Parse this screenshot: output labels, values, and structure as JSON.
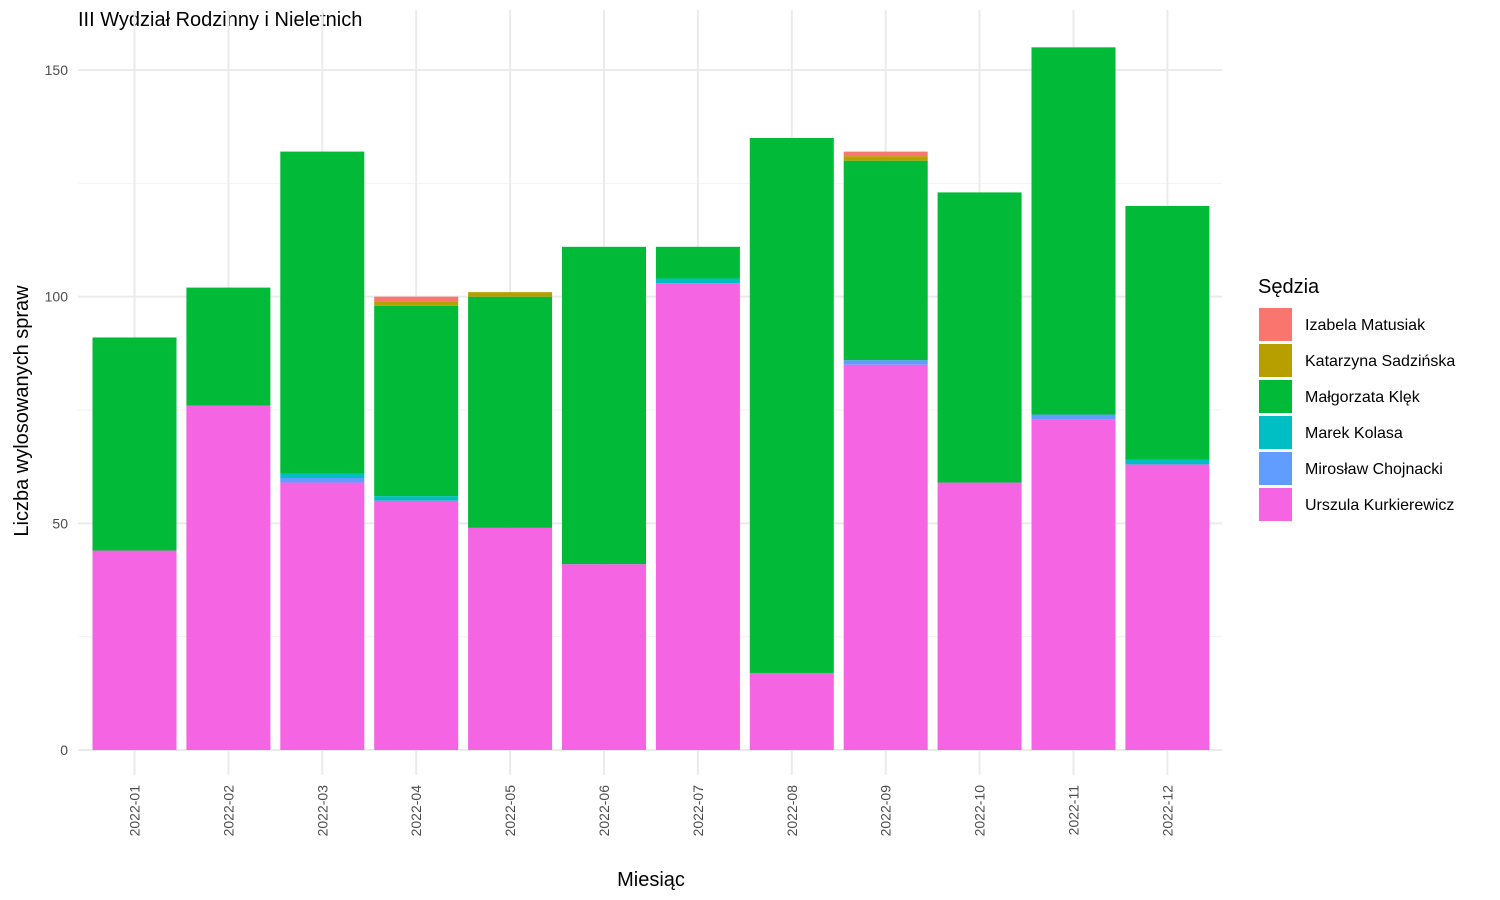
{
  "chart_data": {
    "type": "bar",
    "stacked": true,
    "title": "III Wydział Rodzinny i Nieletnich",
    "xlabel": "Miesiąc",
    "ylabel": "Liczba wylosowanych spraw",
    "ylim": [
      0,
      160
    ],
    "yticks": [
      0,
      50,
      100,
      150
    ],
    "grid": true,
    "legend_title": "Sędzia",
    "legend_position": "right",
    "categories": [
      "2022-01",
      "2022-02",
      "2022-03",
      "2022-04",
      "2022-05",
      "2022-06",
      "2022-07",
      "2022-08",
      "2022-09",
      "2022-10",
      "2022-11",
      "2022-12"
    ],
    "stack_order": [
      "Urszula Kurkierewicz",
      "Mirosław Chojnacki",
      "Marek Kolasa",
      "Małgorzata Klęk",
      "Katarzyna Sadzińska",
      "Izabela Matusiak"
    ],
    "series": [
      {
        "name": "Izabela Matusiak",
        "color": "#F8766D",
        "values": [
          0,
          0,
          0,
          1,
          0,
          0,
          0,
          0,
          1,
          0,
          0,
          0
        ]
      },
      {
        "name": "Katarzyna Sadzińska",
        "color": "#B79F00",
        "values": [
          0,
          0,
          0,
          1,
          1,
          0,
          0,
          0,
          1,
          0,
          0,
          0
        ]
      },
      {
        "name": "Małgorzata Klęk",
        "color": "#00BA38",
        "values": [
          47,
          26,
          71,
          42,
          51,
          70,
          7,
          118,
          44,
          64,
          81,
          56
        ]
      },
      {
        "name": "Marek Kolasa",
        "color": "#00BFC4",
        "values": [
          0,
          0,
          1,
          1,
          0,
          0,
          1,
          0,
          0,
          0,
          0,
          1
        ]
      },
      {
        "name": "Mirosław Chojnacki",
        "color": "#619CFF",
        "values": [
          0,
          0,
          1,
          0,
          0,
          0,
          0,
          0,
          1,
          0,
          1,
          0
        ]
      },
      {
        "name": "Urszula Kurkierewicz",
        "color": "#F564E3",
        "values": [
          44,
          76,
          59,
          55,
          49,
          41,
          103,
          17,
          85,
          59,
          73,
          63
        ]
      }
    ]
  }
}
